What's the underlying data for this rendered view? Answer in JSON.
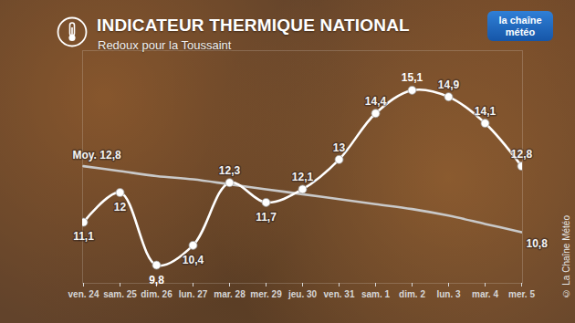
{
  "chart_data": {
    "type": "line",
    "title": "INDICATEUR THERMIQUE NATIONAL",
    "subtitle": "Redoux pour la Toussaint",
    "logo": "la chaîne météo",
    "credit": "© La Chaîne Météo",
    "categories": [
      "ven. 24",
      "sam. 25",
      "dim. 26",
      "lun. 27",
      "mar. 28",
      "mer. 29",
      "jeu. 30",
      "ven. 31",
      "sam. 1",
      "dim. 2",
      "lun. 3",
      "mar. 4",
      "mer. 5"
    ],
    "series": [
      {
        "color": "#ffffff",
        "marker": "circle",
        "values": [
          11.1,
          12,
          9.8,
          10.4,
          12.3,
          11.7,
          12.1,
          13,
          14.4,
          15.1,
          14.9,
          14.1,
          12.8
        ],
        "value_labels": [
          "11,1",
          "12",
          "9,8",
          "10,4",
          "12,3",
          "11,7",
          "12,1",
          "13",
          "14,4",
          "15,1",
          "14,9",
          "14,1",
          "12,8"
        ]
      },
      {
        "color": "#c9c9c9",
        "marker": "none",
        "values": [
          12.8,
          12.65,
          12.5,
          12.4,
          12.25,
          12.1,
          11.95,
          11.8,
          11.65,
          11.5,
          11.3,
          11.05,
          10.8
        ],
        "value_labels": [
          "Moy. 12,8",
          null,
          null,
          null,
          null,
          null,
          null,
          null,
          null,
          null,
          null,
          null,
          "10,8"
        ]
      }
    ],
    "ylim": [
      9.25,
      16.3
    ],
    "data_labels": true,
    "tick_labels": "x",
    "grid": false
  }
}
